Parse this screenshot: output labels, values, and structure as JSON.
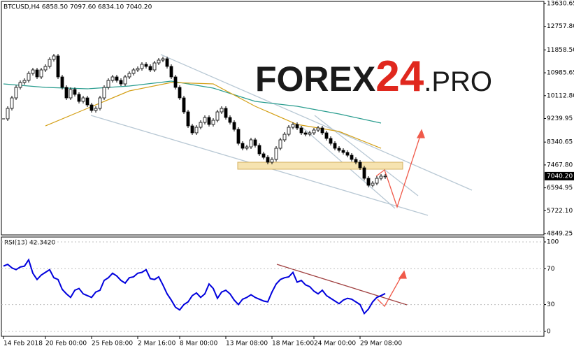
{
  "chart_data": [
    {
      "type": "candlestick",
      "title": "BTCUSD,H4  6858.50 7097.60 6834.10 7040.20",
      "categories": [
        "14 Feb 2018",
        null,
        null,
        null,
        null,
        null,
        null,
        null,
        null,
        null,
        "20 Feb 00:00",
        null,
        null,
        null,
        null,
        null,
        null,
        null,
        null,
        null,
        null,
        "25 Feb 08:00",
        null,
        null,
        null,
        null,
        null,
        null,
        null,
        null,
        null,
        null,
        "2 Mar 16:00",
        null,
        null,
        null,
        null,
        null,
        null,
        null,
        null,
        null,
        "8 Mar 00:00",
        null,
        null,
        null,
        null,
        null,
        null,
        null,
        null,
        null,
        null,
        "13 Mar 08:00",
        null,
        null,
        null,
        null,
        null,
        null,
        null,
        null,
        null,
        null,
        "18 Mar 16:00",
        null,
        null,
        null,
        null,
        null,
        null,
        null,
        null,
        null,
        "24 Mar 00:00",
        null,
        null,
        null,
        null,
        null,
        null,
        null,
        null,
        null,
        null,
        "29 Mar 08:00",
        null,
        null,
        null,
        null,
        null,
        null
      ],
      "values": [
        9227,
        9627,
        10027,
        10428,
        10615,
        10695,
        10962,
        11095,
        10828,
        11095,
        11229,
        11496,
        11629,
        10828,
        10428,
        10027,
        10348,
        10161,
        9894,
        10027,
        9760,
        9547,
        9627,
        10027,
        10428,
        10695,
        10828,
        10695,
        10561,
        10828,
        10962,
        11095,
        11149,
        11309,
        11229,
        11095,
        11362,
        11469,
        11522,
        11229,
        10828,
        10428,
        10027,
        9493,
        8959,
        8693,
        8906,
        9093,
        9280,
        9013,
        9173,
        9493,
        9627,
        9280,
        9093,
        8826,
        8292,
        8105,
        8158,
        8426,
        8212,
        7892,
        7759,
        7572,
        7679,
        8105,
        8426,
        8639,
        8906,
        9013,
        8879,
        8693,
        8639,
        8693,
        8799,
        8879,
        8693,
        8479,
        8292,
        8105,
        8025,
        7945,
        7838,
        7679,
        7572,
        7358,
        6958,
        6691,
        6771,
        6958,
        7038,
        7040.2
      ],
      "last_price": {
        "value": 7040.2,
        "label": "7040.20"
      },
      "moving_averages": [
        {
          "color": "#2a9d8f",
          "x": [
            0,
            10,
            20,
            30,
            40,
            50,
            60,
            70,
            80,
            90
          ],
          "values": [
            10561,
            10428,
            10374,
            10481,
            10668,
            10401,
            9894,
            9707,
            9413,
            9066
          ]
        },
        {
          "color": "#d4a017",
          "x": [
            10,
            20,
            30,
            40,
            50,
            60,
            70,
            80,
            90
          ],
          "values": [
            8959,
            9627,
            10294,
            10615,
            10561,
            9707,
            9013,
            8746,
            8105
          ]
        }
      ],
      "ylim": [
        4849.25,
        13630.65
      ],
      "yticks": [
        {
          "value": 13630.65,
          "label": "13630.65"
        },
        {
          "value": 12757.8,
          "label": "12757.80"
        },
        {
          "value": 11858.5,
          "label": "11858.50"
        },
        {
          "value": 10985.65,
          "label": "10985.65"
        },
        {
          "value": 10112.8,
          "label": "10112.80"
        },
        {
          "value": 9239.95,
          "label": "9239.95"
        },
        {
          "value": 8340.65,
          "label": "8340.65"
        },
        {
          "value": 7467.8,
          "label": "7467.80"
        },
        {
          "value": 6594.95,
          "label": "6594.95"
        },
        {
          "value": 5722.1,
          "label": "5722.10"
        },
        {
          "value": 4849.25,
          "label": "4849.25"
        }
      ],
      "logo": {
        "main": "FOREX",
        "number": "24",
        "suffix": ".PRO"
      }
    },
    {
      "type": "line",
      "title": "RSI(13) 42.3420",
      "color": "#0000dd",
      "values": [
        73,
        75,
        71,
        69,
        72,
        73,
        80,
        65,
        58,
        63,
        66,
        69,
        60,
        58,
        47,
        42,
        38,
        46,
        48,
        42,
        40,
        38,
        44,
        46,
        57,
        60,
        65,
        62,
        57,
        54,
        60,
        61,
        65,
        66,
        69,
        59,
        58,
        61,
        52,
        42,
        35,
        27,
        24,
        30,
        33,
        40,
        43,
        38,
        42,
        53,
        48,
        37,
        44,
        46,
        42,
        35,
        30,
        36,
        38,
        41,
        38,
        36,
        34,
        33,
        44,
        53,
        58,
        60,
        61,
        66,
        55,
        57,
        52,
        50,
        45,
        42,
        46,
        40,
        37,
        34,
        31,
        35,
        37,
        36,
        33,
        30,
        20,
        25,
        33,
        38,
        40,
        42.342
      ],
      "ylim": [
        0,
        100
      ],
      "yticks": [
        100,
        70,
        30,
        0
      ]
    }
  ]
}
